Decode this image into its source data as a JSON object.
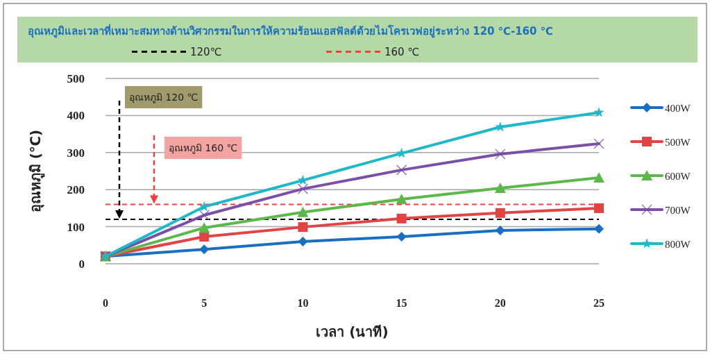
{
  "chart_data": {
    "type": "line",
    "title": "อุณหภูมิและเวลาที่เหมาะสมทางด้านวิศวกรรมในการให้ความร้อนแอสฟัลต์ด้วยไมโครเวฟอยู่ระหว่าง 120 ℃-160 ℃",
    "xlabel": "เวลา (นาที)",
    "ylabel": "อุณหภูมิ (℃)",
    "x": [
      0,
      5,
      10,
      15,
      20,
      25
    ],
    "xlim": [
      0,
      25
    ],
    "xticks": [
      0,
      5,
      10,
      15,
      20,
      25
    ],
    "ylim": [
      0,
      500
    ],
    "yticks": [
      0,
      100,
      200,
      300,
      400,
      500
    ],
    "grid": "y",
    "legend": "right",
    "series": [
      {
        "name": "400W",
        "color": "#1a6fc0",
        "marker": "diamond",
        "values": [
          20,
          39,
          60,
          73,
          90,
          94
        ]
      },
      {
        "name": "500W",
        "color": "#e04444",
        "marker": "square",
        "values": [
          20,
          73,
          99,
          122,
          137,
          150
        ]
      },
      {
        "name": "600W",
        "color": "#5cb84a",
        "marker": "triangle",
        "values": [
          20,
          97,
          139,
          174,
          204,
          232
        ]
      },
      {
        "name": "700W",
        "color": "#7b4fa6",
        "marker": "cross",
        "values": [
          20,
          131,
          202,
          253,
          296,
          324
        ]
      },
      {
        "name": "800W",
        "color": "#1fb8c8",
        "marker": "star",
        "values": [
          20,
          154,
          225,
          298,
          369,
          408
        ]
      }
    ],
    "ref_lines": [
      {
        "axis": "y",
        "value": 120,
        "label": "120℃",
        "color": "#000000",
        "line_style": "dashed"
      },
      {
        "axis": "y",
        "value": 160,
        "label": "160 ℃",
        "color": "#f04040",
        "line_style": "dashed"
      }
    ],
    "annotations": [
      "อุณหภูมิ 120 ℃",
      "อุณหภูมิ 160 ℃"
    ]
  }
}
